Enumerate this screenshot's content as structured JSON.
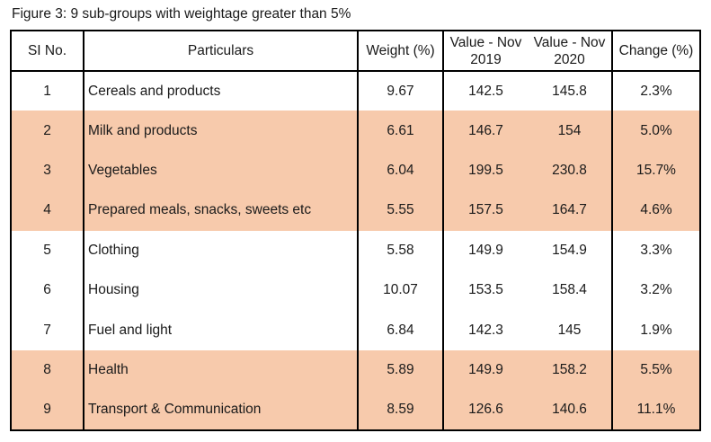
{
  "title": "Figure 3: 9 sub-groups with weightage greater than 5%",
  "highlight_color": "#F7CAAC",
  "table": {
    "headers": {
      "sl_no": "SI No.",
      "particulars": "Particulars",
      "weight": "Weight (%)",
      "value_2019_line1": "Value - Nov",
      "value_2019_line2": "2019",
      "value_2020_line1": "Value - Nov",
      "value_2020_line2": "2020",
      "change": "Change (%)"
    },
    "rows": [
      {
        "sl": "1",
        "particulars": "Cereals and products",
        "weight": "9.67",
        "value_2019": "142.5",
        "value_2020": "145.8",
        "change": "2.3%",
        "highlighted": false
      },
      {
        "sl": "2",
        "particulars": "Milk and products",
        "weight": "6.61",
        "value_2019": "146.7",
        "value_2020": "154",
        "change": "5.0%",
        "highlighted": true
      },
      {
        "sl": "3",
        "particulars": "Vegetables",
        "weight": "6.04",
        "value_2019": "199.5",
        "value_2020": "230.8",
        "change": "15.7%",
        "highlighted": true
      },
      {
        "sl": "4",
        "particulars": "Prepared meals, snacks, sweets etc",
        "weight": "5.55",
        "value_2019": "157.5",
        "value_2020": "164.7",
        "change": "4.6%",
        "highlighted": true
      },
      {
        "sl": "5",
        "particulars": "Clothing",
        "weight": "5.58",
        "value_2019": "149.9",
        "value_2020": "154.9",
        "change": "3.3%",
        "highlighted": false
      },
      {
        "sl": "6",
        "particulars": "Housing",
        "weight": "10.07",
        "value_2019": "153.5",
        "value_2020": "158.4",
        "change": "3.2%",
        "highlighted": false
      },
      {
        "sl": "7",
        "particulars": "Fuel and light",
        "weight": "6.84",
        "value_2019": "142.3",
        "value_2020": "145",
        "change": "1.9%",
        "highlighted": false
      },
      {
        "sl": "8",
        "particulars": "Health",
        "weight": "5.89",
        "value_2019": "149.9",
        "value_2020": "158.2",
        "change": "5.5%",
        "highlighted": true
      },
      {
        "sl": "9",
        "particulars": "Transport & Communication",
        "weight": "8.59",
        "value_2019": "126.6",
        "value_2020": "140.6",
        "change": "11.1%",
        "highlighted": true
      }
    ]
  }
}
